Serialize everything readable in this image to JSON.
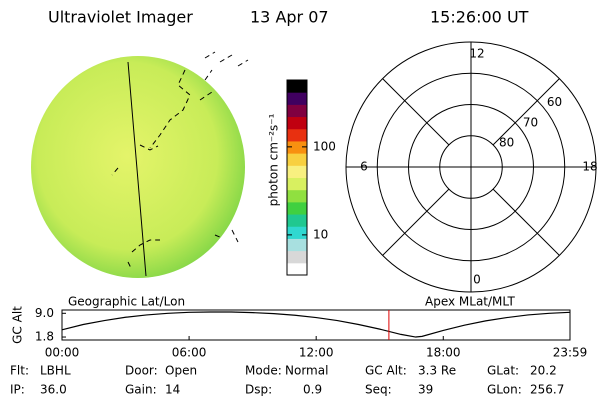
{
  "header": {
    "title": "Ultraviolet Imager",
    "date": "13 Apr 07",
    "time": "15:26:00 UT"
  },
  "colorbar": {
    "label": "photon cm⁻²s⁻¹",
    "scale": "log",
    "lim": [
      3.5,
      575
    ],
    "ticks": [
      10,
      100
    ],
    "colors": [
      "#ffffff",
      "#d8d8d8",
      "#a8e0e0",
      "#30d8d0",
      "#20c890",
      "#40d040",
      "#90e040",
      "#d8f060",
      "#f8f080",
      "#f8d040",
      "#f89010",
      "#e83010",
      "#c00010",
      "#800040",
      "#400060",
      "#000000"
    ]
  },
  "polar": {
    "mlat_lim": [
      90,
      50
    ],
    "mlat_ticks": [
      80,
      70,
      60
    ],
    "mlt_ticks": [
      12,
      6,
      0,
      18
    ]
  },
  "chart_data": {
    "type": "line",
    "geo_label": "Geographic Lat/Lon",
    "apex_label": "Apex MLat/MLT",
    "y_label": "GC Alt",
    "x": [
      0,
      1,
      2,
      3,
      4,
      5,
      6,
      7,
      8,
      9,
      10,
      11,
      12,
      13,
      14,
      15,
      16,
      16.7,
      17,
      18,
      19,
      20,
      21,
      22,
      23,
      23.983
    ],
    "values": [
      4.0,
      5.6,
      6.8,
      7.8,
      8.5,
      9.0,
      9.3,
      9.4,
      9.4,
      9.2,
      8.9,
      8.4,
      7.7,
      6.8,
      5.6,
      4.2,
      2.6,
      1.8,
      2.0,
      3.8,
      5.4,
      6.7,
      7.7,
      8.5,
      9.0,
      9.3
    ],
    "color": "#000000",
    "xlim": [
      0,
      23.983
    ],
    "xticks": [
      {
        "value": 0,
        "label": "00:00"
      },
      {
        "value": 6,
        "label": "06:00"
      },
      {
        "value": 12,
        "label": "12:00"
      },
      {
        "value": 18,
        "label": "18:00"
      },
      {
        "value": 23.983,
        "label": "23:59"
      }
    ],
    "ylim": [
      0.9,
      10
    ],
    "yticks": [
      1.8,
      {
        "value": 9,
        "label": "9.0"
      }
    ],
    "marker_x": 15.433,
    "marker_color": "#e00000"
  },
  "footer": {
    "rows": [
      [
        {
          "label": "Flt:",
          "value": "LBHL"
        },
        {
          "label": "Door:",
          "value": "Open"
        },
        {
          "label": "Mode:",
          "value": "Normal"
        },
        {
          "label": "GC Alt:",
          "value": "3.3 Re"
        },
        {
          "label": "GLat:",
          "value": "20.2"
        }
      ],
      [
        {
          "label": "IP:",
          "value": "36.0"
        },
        {
          "label": "Gain:",
          "value": "14"
        },
        {
          "label": "Dsp:",
          "value": "0.9"
        },
        {
          "label": "Seq:",
          "value": "39"
        },
        {
          "label": "GLon:",
          "value": "256.7"
        }
      ]
    ]
  }
}
